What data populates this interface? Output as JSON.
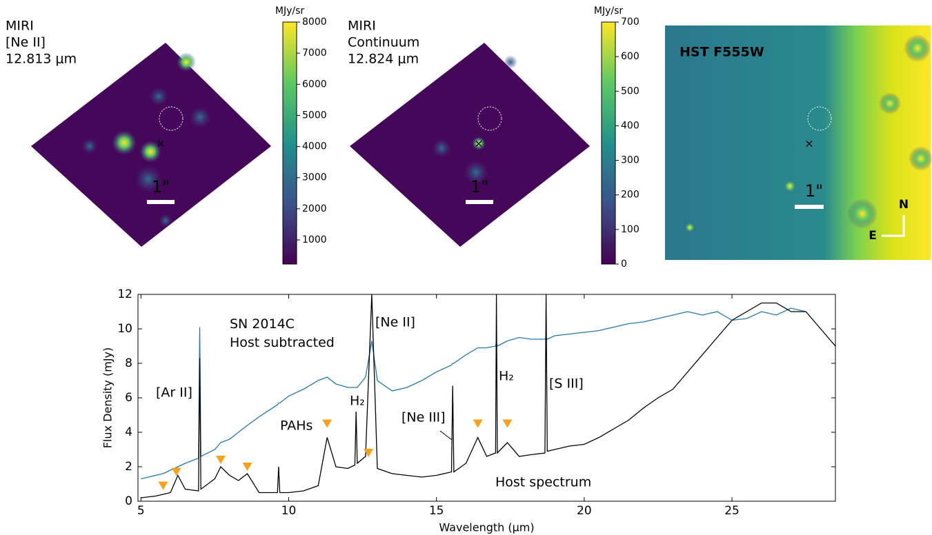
{
  "chart_data": [
    {
      "type": "image",
      "title_lines": [
        "MIRI",
        "[Ne II]",
        "12.813 μm"
      ],
      "colorbar": {
        "label": "MJy/sr",
        "lim": [
          225,
          8000
        ],
        "ticks": [
          1000,
          2000,
          3000,
          4000,
          5000,
          6000,
          7000,
          8000
        ]
      },
      "scale_label": "1\""
    },
    {
      "type": "image",
      "title_lines": [
        "MIRI",
        "Continuum",
        "12.824 μm"
      ],
      "colorbar": {
        "label": "MJy/sr",
        "lim": [
          0,
          700
        ],
        "ticks": [
          0,
          100,
          200,
          300,
          400,
          500,
          600,
          700
        ]
      },
      "scale_label": "1\""
    },
    {
      "type": "image",
      "title_lines": [
        "HST F555W"
      ],
      "scale_label": "1\"",
      "compass": [
        "N",
        "E"
      ]
    },
    {
      "type": "line",
      "xlabel": "Wavelength (μm)",
      "ylabel": "Flux Density (mJy)",
      "xlim": [
        4.9,
        28.5
      ],
      "ylim": [
        0,
        12
      ],
      "xticks": [
        5,
        10,
        15,
        20,
        25
      ],
      "yticks": [
        0,
        2,
        4,
        6,
        8,
        10,
        12
      ],
      "x": [
        5,
        5.5,
        5.75,
        6,
        6.25,
        6.5,
        6.95,
        6.99,
        7.03,
        7.5,
        7.7,
        8,
        8.3,
        8.6,
        9,
        9.62,
        9.66,
        9.7,
        10,
        10.5,
        11,
        11.3,
        11.6,
        12,
        12.24,
        12.28,
        12.32,
        12.6,
        12.81,
        13.0,
        13.5,
        14,
        14.5,
        15,
        15.51,
        15.55,
        15.59,
        16,
        16.4,
        16.7,
        17.0,
        17.03,
        17.06,
        17.4,
        17.8,
        18.2,
        18.67,
        18.71,
        18.75,
        19,
        19.5,
        20,
        20.5,
        21,
        21.5,
        22,
        22.5,
        23,
        23.5,
        24,
        24.5,
        25,
        25.5,
        26,
        26.5,
        27,
        27.5,
        28,
        28.5
      ],
      "series": [
        {
          "name": "SN 2014C Host subtracted",
          "color": "#1f77b4",
          "values": [
            1.3,
            1.5,
            1.6,
            1.8,
            2.0,
            2.2,
            2.5,
            10.1,
            2.6,
            3.0,
            3.4,
            3.6,
            4.0,
            4.4,
            4.9,
            5.6,
            5.7,
            5.7,
            6.1,
            6.5,
            7.0,
            7.2,
            6.8,
            6.6,
            6.6,
            6.6,
            6.6,
            7.2,
            9.3,
            7.0,
            6.4,
            6.6,
            7.0,
            7.5,
            7.9,
            8.0,
            8.0,
            8.5,
            8.9,
            8.9,
            9.0,
            9.2,
            9.0,
            9.3,
            9.5,
            9.4,
            9.4,
            9.5,
            9.4,
            9.6,
            9.7,
            9.8,
            9.9,
            10.1,
            10.3,
            10.4,
            10.6,
            10.8,
            11.0,
            10.8,
            11.0,
            10.5,
            10.6,
            11.0,
            10.8,
            11.2,
            11.0,
            null,
            null
          ]
        },
        {
          "name": "Host spectrum",
          "color": "#000000",
          "values": [
            0.2,
            0.3,
            0.4,
            0.5,
            1.5,
            0.7,
            0.6,
            8.3,
            0.7,
            1.3,
            2.0,
            1.5,
            1.2,
            1.6,
            0.5,
            0.5,
            2.0,
            0.5,
            0.5,
            0.6,
            0.9,
            3.7,
            2.0,
            1.9,
            2.1,
            5.2,
            2.2,
            2.6,
            12,
            1.9,
            1.6,
            1.5,
            1.4,
            1.5,
            1.7,
            6.7,
            1.7,
            2.2,
            3.7,
            2.6,
            2.8,
            12,
            2.8,
            3.4,
            2.6,
            2.7,
            2.8,
            12,
            2.9,
            3.0,
            3.2,
            3.3,
            3.7,
            4.2,
            4.7,
            5.4,
            6.0,
            6.5,
            7.5,
            8.5,
            9.5,
            10.5,
            11,
            11.5,
            11.5,
            11,
            11,
            10,
            9
          ]
        }
      ],
      "annotations": [
        "[Ar II]",
        "[Ne II]",
        "H₂",
        "[Ne III]",
        "H₂",
        "[S III]",
        "PAHs"
      ],
      "pah_markers": {
        "color": "#f5a11b",
        "x": [
          5.75,
          6.2,
          7.7,
          8.6,
          11.3,
          12.7,
          16.4,
          17.4
        ],
        "y": [
          0.9,
          1.7,
          2.4,
          2.0,
          4.5,
          2.8,
          4.5,
          4.5
        ]
      }
    }
  ]
}
